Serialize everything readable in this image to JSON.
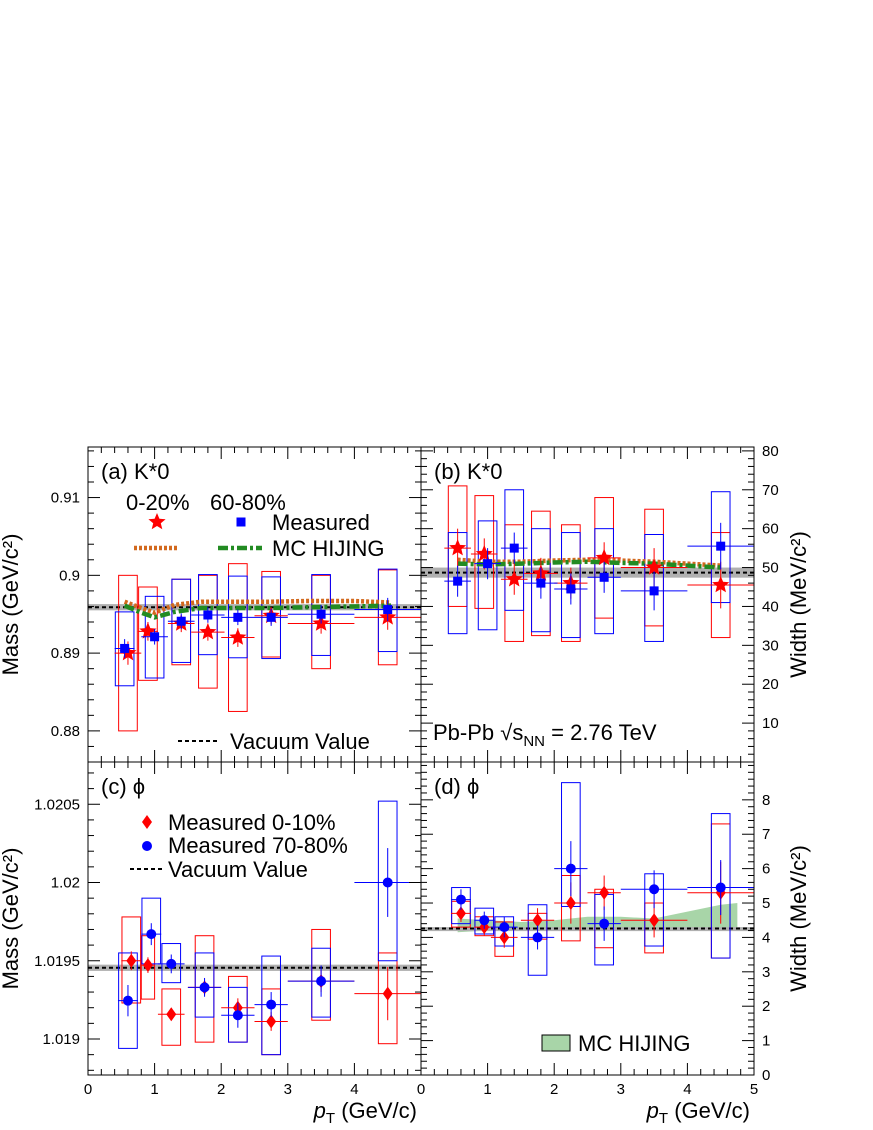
{
  "colors": {
    "central": "#ff0000",
    "peripheral": "#0000ff",
    "mc_central": "#d2691e",
    "mc_peripheral": "#228b22",
    "mc_band": "#a8d5a8",
    "vacuum_band": "#b0b0b0"
  },
  "x_axis": {
    "title_main": "p",
    "title_sub": "T",
    "title_unit": " (GeV/c)",
    "range": [
      0,
      5
    ],
    "ticks": [
      "0",
      "1",
      "2",
      "3",
      "4",
      "5"
    ]
  },
  "labels": {
    "energy_text": "Pb-Pb √s",
    "energy_sub": "NN",
    "energy_value": " = 2.76 TeV"
  },
  "chart_data": [
    {
      "id": "a",
      "type": "scatter",
      "panel_label": "(a)  K*0",
      "ylabel": "Mass (GeV/c²)",
      "ylim": [
        0.876,
        0.9165
      ],
      "yticks": [
        "0.88",
        "0.89",
        "0.9",
        "0.91"
      ],
      "ytick_values": [
        0.88,
        0.89,
        0.9,
        0.91
      ],
      "y_axis_side": "left",
      "legend_header": [
        "0-20%",
        "60-80%"
      ],
      "legend_measured": "Measured",
      "legend_mc": "MC HIJING",
      "legend_vacuum": "Vacuum Value",
      "vacuum": 0.8959,
      "vacuum_band": 0.0004,
      "series": [
        {
          "name": "0-20%",
          "marker": "star",
          "color": "central",
          "x": [
            0.6,
            0.9,
            1.4,
            1.8,
            2.25,
            2.75,
            3.5,
            4.5
          ],
          "y": [
            0.89,
            0.8928,
            0.8938,
            0.8927,
            0.892,
            0.8948,
            0.8938,
            0.8946
          ],
          "ey": [
            0.0015,
            0.0012,
            0.0011,
            0.0011,
            0.0012,
            0.0011,
            0.0013,
            0.0016
          ],
          "ex": [
            0.2,
            0.15,
            0.2,
            0.25,
            0.25,
            0.25,
            0.5,
            0.5
          ],
          "sys_lo": [
            0.88,
            0.8865,
            0.8885,
            0.8855,
            0.8825,
            0.8895,
            0.888,
            0.8885
          ],
          "sys_hi": [
            0.9,
            0.8985,
            0.8995,
            0.9,
            0.9015,
            0.9005,
            0.9,
            0.9007
          ]
        },
        {
          "name": "60-80%",
          "marker": "square",
          "color": "peripheral",
          "x": [
            0.55,
            1.0,
            1.4,
            1.8,
            2.25,
            2.75,
            3.5,
            4.5
          ],
          "y": [
            0.8906,
            0.8921,
            0.8941,
            0.8949,
            0.8946,
            0.8946,
            0.895,
            0.8956
          ],
          "ey": [
            0.0012,
            0.001,
            0.001,
            0.001,
            0.001,
            0.0011,
            0.0012,
            0.0015
          ],
          "ex": [
            0.15,
            0.2,
            0.2,
            0.25,
            0.25,
            0.25,
            0.5,
            0.5
          ],
          "sys_lo": [
            0.8858,
            0.8868,
            0.8888,
            0.8898,
            0.8894,
            0.8893,
            0.8897,
            0.8902
          ],
          "sys_hi": [
            0.8953,
            0.8973,
            0.8995,
            0.9001,
            0.8999,
            0.8998,
            0.9001,
            0.9008
          ]
        }
      ],
      "mc_lines": [
        {
          "name": "MC HIJING 0-20%",
          "color": "mc_central",
          "style": "dotted",
          "x": [
            0.55,
            0.8,
            1.0,
            1.3,
            1.7,
            2.2,
            2.7,
            3.3,
            4.0,
            4.55
          ],
          "y": [
            0.8966,
            0.8958,
            0.8952,
            0.8962,
            0.8966,
            0.8966,
            0.8966,
            0.8967,
            0.8967,
            0.8965
          ]
        },
        {
          "name": "MC HIJING 60-80%",
          "color": "mc_peripheral",
          "style": "dashdot",
          "x": [
            0.55,
            0.8,
            1.0,
            1.3,
            1.7,
            2.2,
            2.7,
            3.3,
            4.0,
            4.55
          ],
          "y": [
            0.8961,
            0.8952,
            0.8946,
            0.8953,
            0.8958,
            0.8958,
            0.8958,
            0.8959,
            0.896,
            0.8961
          ]
        }
      ]
    },
    {
      "id": "b",
      "type": "scatter",
      "panel_label": "(b)  K*0",
      "ylabel": "Width (MeV/c²)",
      "ylim": [
        0,
        81
      ],
      "yticks": [
        "10",
        "20",
        "30",
        "40",
        "50",
        "60",
        "70",
        "80"
      ],
      "ytick_values": [
        10,
        20,
        30,
        40,
        50,
        60,
        70,
        80
      ],
      "y_axis_side": "right",
      "vacuum": 48.7,
      "vacuum_band": 1.3,
      "series": [
        {
          "name": "0-20%",
          "marker": "star",
          "color": "central",
          "x": [
            0.55,
            0.95,
            1.4,
            1.8,
            2.25,
            2.75,
            3.5,
            4.5
          ],
          "y": [
            55.0,
            53.5,
            47.0,
            48.5,
            46.0,
            52.5,
            50.0,
            45.5
          ],
          "ey": [
            5,
            4,
            4,
            4,
            4,
            4,
            5,
            6
          ],
          "ex": [
            0.2,
            0.2,
            0.2,
            0.25,
            0.25,
            0.25,
            0.5,
            0.5
          ],
          "sys_lo": [
            40,
            39.5,
            31.0,
            32.5,
            31.0,
            37.0,
            35.0,
            32.0
          ],
          "sys_hi": [
            71,
            68.5,
            61.0,
            64.5,
            61.0,
            68.0,
            65.0,
            59.0
          ]
        },
        {
          "name": "60-80%",
          "marker": "square",
          "color": "peripheral",
          "x": [
            0.55,
            1.0,
            1.4,
            1.8,
            2.25,
            2.75,
            3.5,
            4.5
          ],
          "y": [
            46.5,
            51.0,
            55.0,
            46.0,
            44.5,
            47.5,
            44.0,
            55.5
          ],
          "ey": [
            4,
            4,
            4,
            4,
            4,
            4,
            5,
            6
          ],
          "ex": [
            0.2,
            0.2,
            0.2,
            0.25,
            0.25,
            0.25,
            0.5,
            0.5
          ],
          "sys_lo": [
            33,
            34,
            39,
            33.5,
            32,
            33,
            31,
            41
          ],
          "sys_hi": [
            59,
            62,
            70,
            60,
            59,
            60,
            58.5,
            69.5
          ]
        }
      ],
      "mc_lines": [
        {
          "name": "MC HIJING 0-20%",
          "color": "mc_central",
          "style": "dotted",
          "x": [
            0.55,
            1.0,
            1.5,
            2.0,
            2.5,
            3.0,
            3.5,
            4.0,
            4.5
          ],
          "y": [
            52.0,
            51.5,
            51.5,
            51.8,
            52.0,
            51.8,
            51.5,
            51.0,
            50.5
          ]
        },
        {
          "name": "MC HIJING 60-80%",
          "color": "mc_peripheral",
          "style": "dashdot",
          "x": [
            0.55,
            1.0,
            1.5,
            2.0,
            2.5,
            3.0,
            3.5,
            4.0,
            4.5
          ],
          "y": [
            51.0,
            50.8,
            51.0,
            51.3,
            51.5,
            51.2,
            51.0,
            50.5,
            50.0
          ]
        }
      ]
    },
    {
      "id": "c",
      "type": "scatter",
      "panel_label": "(c)  ϕ",
      "ylabel": "Mass (GeV/c²)",
      "ylim": [
        1.01877,
        1.02077
      ],
      "yticks": [
        "1.019",
        "1.0195",
        "1.02",
        "1.0205"
      ],
      "ytick_values": [
        1.019,
        1.0195,
        1.02,
        1.0205
      ],
      "y_axis_side": "left",
      "legend_measured_central": "Measured 0-10%",
      "legend_measured_peripheral": "Measured 70-80%",
      "legend_vacuum": "Vacuum Value",
      "vacuum": 1.019455,
      "vacuum_band": 2e-05,
      "series": [
        {
          "name": "Measured 0-10%",
          "marker": "diamond",
          "color": "central",
          "x": [
            0.65,
            0.9,
            1.25,
            1.75,
            2.25,
            2.75,
            3.5,
            4.5
          ],
          "y": [
            1.0195,
            1.019472,
            1.019158,
            1.01933,
            1.0192,
            1.019112,
            1.01937,
            1.01929
          ],
          "ey": [
            6e-05,
            5e-05,
            4e-05,
            5e-05,
            6e-05,
            6e-05,
            7e-05,
            0.00017
          ],
          "ex": [
            0.15,
            0.1,
            0.2,
            0.25,
            0.25,
            0.25,
            0.5,
            0.5
          ],
          "sys_lo": [
            1.01923,
            1.019255,
            1.01896,
            1.01898,
            1.01898,
            1.0189,
            1.01912,
            1.01897
          ],
          "sys_hi": [
            1.01978,
            1.01966,
            1.01932,
            1.01966,
            1.0194,
            1.01932,
            1.0197,
            1.01955
          ]
        },
        {
          "name": "Measured 70-80%",
          "marker": "circle",
          "color": "peripheral",
          "x": [
            0.6,
            0.95,
            1.25,
            1.75,
            2.25,
            2.75,
            3.5,
            4.5
          ],
          "y": [
            1.019245,
            1.01967,
            1.01948,
            1.01933,
            1.019152,
            1.01922,
            1.01937,
            1.02
          ],
          "ey": [
            0.0001,
            7e-05,
            6e-05,
            6e-05,
            8e-05,
            8e-05,
            0.0001,
            0.00022
          ],
          "ex": [
            0.15,
            0.15,
            0.2,
            0.25,
            0.25,
            0.25,
            0.5,
            0.5
          ],
          "sys_lo": [
            1.01894,
            1.01948,
            1.01936,
            1.01914,
            1.01898,
            1.0189,
            1.01914,
            1.0195
          ],
          "sys_hi": [
            1.01955,
            1.0199,
            1.01961,
            1.01955,
            1.01933,
            1.01953,
            1.01958,
            1.02052
          ]
        }
      ]
    },
    {
      "id": "d",
      "type": "scatter",
      "panel_label": "(d)  ϕ",
      "ylabel": "Width (MeV/c²)",
      "ylim": [
        0,
        9.1
      ],
      "yticks": [
        "0",
        "1",
        "2",
        "3",
        "4",
        "5",
        "6",
        "7",
        "8"
      ],
      "ytick_values": [
        0,
        1,
        2,
        3,
        4,
        5,
        6,
        7,
        8
      ],
      "y_axis_side": "right",
      "legend_mc": "MC HIJING",
      "vacuum": 4.26,
      "vacuum_band": 0.04,
      "mc_band": {
        "x": [
          0.55,
          1.0,
          1.5,
          2.0,
          2.5,
          3.0,
          3.5,
          4.0,
          4.5,
          4.75
        ],
        "lo": [
          4.15,
          4.2,
          4.22,
          4.25,
          4.2,
          4.2,
          4.2,
          4.25,
          4.25,
          4.3
        ],
        "hi": [
          4.55,
          4.5,
          4.45,
          4.5,
          4.6,
          4.6,
          4.55,
          4.75,
          4.95,
          5.0
        ]
      },
      "series": [
        {
          "name": "Measured 0-10%",
          "marker": "diamond",
          "color": "central",
          "x": [
            0.6,
            0.95,
            1.25,
            1.75,
            2.25,
            2.75,
            3.5,
            4.5
          ],
          "y": [
            4.7,
            4.3,
            4.0,
            4.5,
            5.0,
            5.3,
            4.5,
            5.3
          ],
          "ey": [
            0.25,
            0.25,
            0.3,
            0.35,
            0.6,
            0.5,
            0.5,
            0.9
          ],
          "ex": [
            0.15,
            0.15,
            0.2,
            0.25,
            0.25,
            0.25,
            0.5,
            0.5
          ],
          "sys_lo": [
            4.3,
            4.05,
            3.45,
            3.95,
            3.9,
            3.7,
            3.55,
            3.4
          ],
          "sys_hi": [
            5.05,
            4.6,
            4.45,
            4.7,
            5.8,
            5.4,
            5.0,
            7.3
          ]
        },
        {
          "name": "Measured 70-80%",
          "marker": "circle",
          "color": "peripheral",
          "x": [
            0.6,
            0.95,
            1.25,
            1.75,
            2.25,
            2.75,
            3.5,
            4.5
          ],
          "y": [
            5.1,
            4.5,
            4.3,
            4.0,
            6.0,
            4.4,
            5.4,
            5.45
          ],
          "ey": [
            0.3,
            0.25,
            0.3,
            0.35,
            0.8,
            0.5,
            0.55,
            0.8
          ],
          "ex": [
            0.15,
            0.15,
            0.2,
            0.25,
            0.25,
            0.25,
            0.5,
            0.5
          ],
          "sys_lo": [
            4.4,
            4.1,
            3.75,
            2.9,
            4.9,
            3.2,
            3.75,
            3.4
          ],
          "sys_hi": [
            5.45,
            4.85,
            4.6,
            4.95,
            8.5,
            5.25,
            5.85,
            7.6
          ]
        }
      ]
    }
  ]
}
